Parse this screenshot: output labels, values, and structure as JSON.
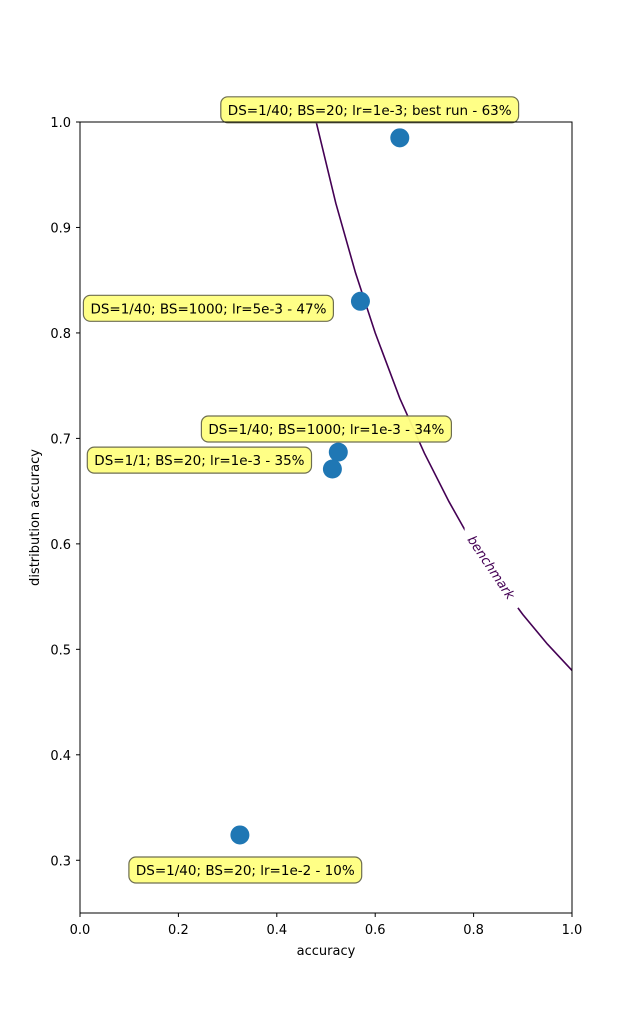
{
  "chart_data": {
    "type": "scatter",
    "title": "",
    "xlabel": "accuracy",
    "ylabel": "distribution accuracy",
    "xlim": [
      0,
      1
    ],
    "ylim": [
      0.25,
      1.0
    ],
    "xticks": [
      "0.0",
      "0.2",
      "0.4",
      "0.6",
      "0.8",
      "1.0"
    ],
    "yticks": [
      "0.3",
      "0.4",
      "0.5",
      "0.6",
      "0.7",
      "0.8",
      "0.9",
      "1.0"
    ],
    "grid": false,
    "point_color": "#1f77b4",
    "annotation_color": "#ffff80",
    "points": [
      {
        "x": 0.65,
        "y": 0.985,
        "label": "DS=1/40; BS=20; lr=1e-3; best run - 63%"
      },
      {
        "x": 0.57,
        "y": 0.83,
        "label": "DS=1/40; BS=1000; lr=5e-3 - 47%"
      },
      {
        "x": 0.525,
        "y": 0.687,
        "label": "DS=1/1; BS=20; lr=1e-3 - 35%"
      },
      {
        "x": 0.513,
        "y": 0.671,
        "label": "DS=1/40; BS=1000; lr=1e-3 - 34%"
      },
      {
        "x": 0.325,
        "y": 0.324,
        "label": "DS=1/40; BS=20; lr=1e-2 - 10%"
      }
    ],
    "contour": {
      "label": "benchmark",
      "color": "#440154",
      "x": [
        0.48,
        0.52,
        0.56,
        0.6,
        0.65,
        0.7,
        0.75,
        0.78,
        0.8,
        0.85,
        0.9,
        0.95,
        1.0
      ],
      "y": [
        1.0,
        0.923,
        0.857,
        0.8,
        0.738,
        0.686,
        0.64,
        0.615,
        0.6,
        0.565,
        0.533,
        0.505,
        0.48
      ]
    }
  }
}
